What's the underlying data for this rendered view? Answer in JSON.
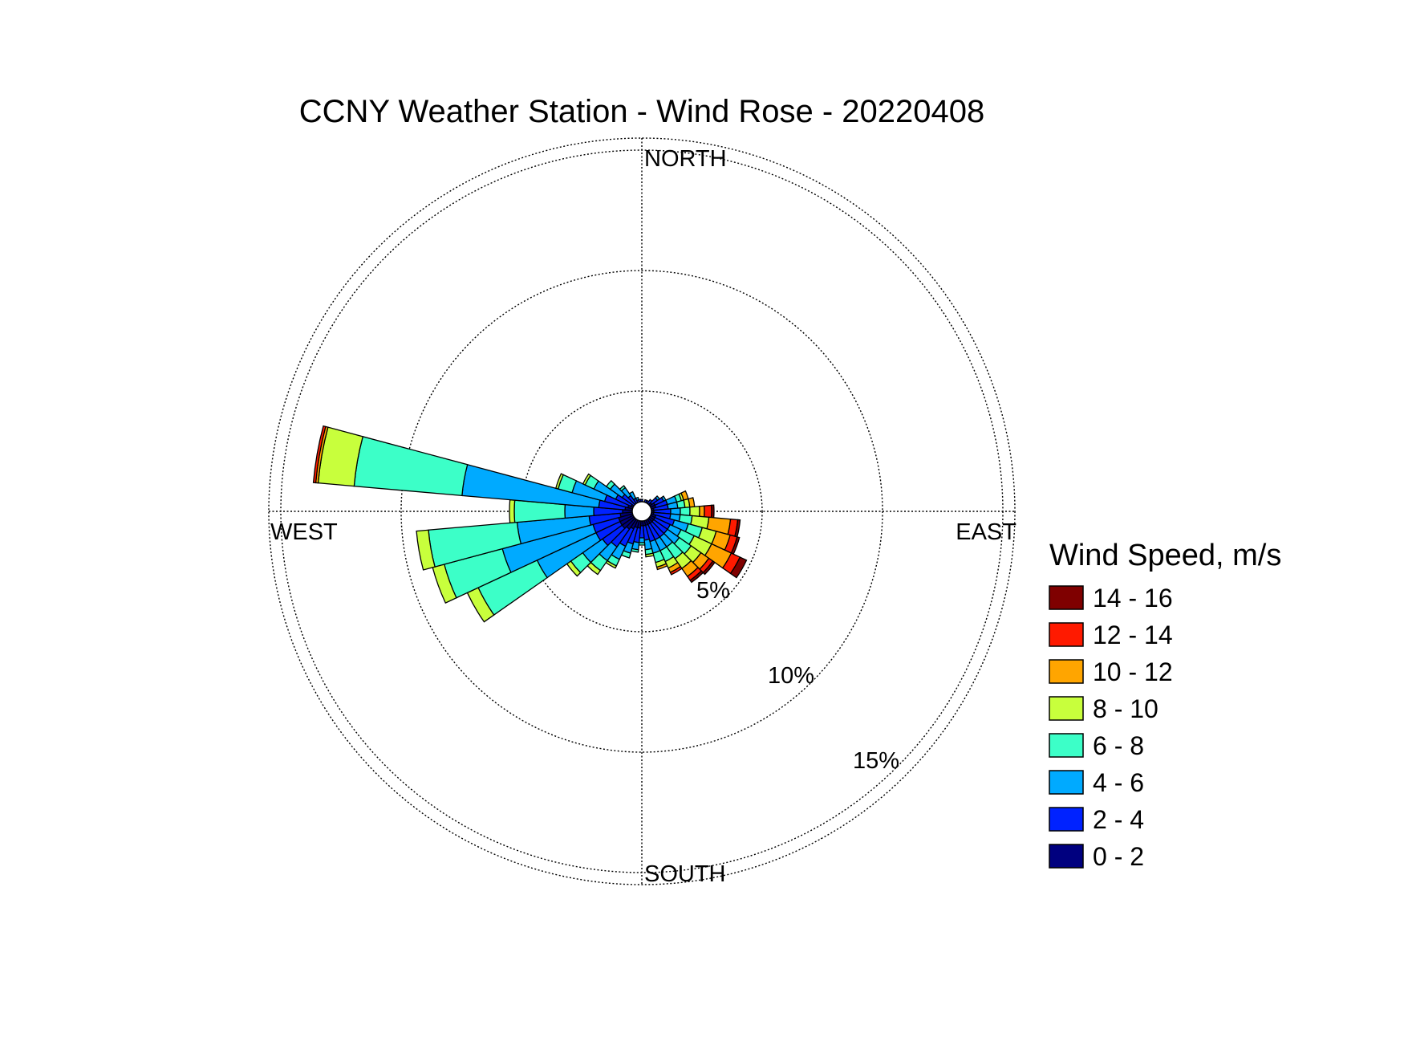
{
  "chart_data": {
    "type": "windrose",
    "title": "CCNY Weather Station - Wind Rose - 20220408",
    "direction_labels": [
      "NORTH",
      "EAST",
      "SOUTH",
      "WEST"
    ],
    "ring_labels": [
      "5%",
      "10%",
      "15%"
    ],
    "rings_percent": [
      5,
      10,
      15
    ],
    "rmax_percent": 15.5,
    "grid": true,
    "legend_position": "right",
    "legend_title": "Wind Speed, m/s",
    "speed_bins": [
      {
        "label": "0 - 2",
        "color": "#00007f"
      },
      {
        "label": "2 - 4",
        "color": "#0022ff"
      },
      {
        "label": "4 - 6",
        "color": "#00aaff"
      },
      {
        "label": "6 - 8",
        "color": "#3cffc8"
      },
      {
        "label": "8 - 10",
        "color": "#c8ff3c"
      },
      {
        "label": "10 - 12",
        "color": "#ffa500"
      },
      {
        "label": "12 - 14",
        "color": "#ff1a00"
      },
      {
        "label": "14 - 16",
        "color": "#7f0000"
      }
    ],
    "sector_width_deg": 10,
    "sectors": [
      {
        "direction_deg": 0,
        "cumulative_percent": [
          0.3,
          0.5
        ]
      },
      {
        "direction_deg": 10,
        "cumulative_percent": [
          0.3,
          0.4
        ]
      },
      {
        "direction_deg": 20,
        "cumulative_percent": [
          0.3,
          0.5
        ]
      },
      {
        "direction_deg": 30,
        "cumulative_percent": [
          0.3,
          0.5
        ]
      },
      {
        "direction_deg": 40,
        "cumulative_percent": [
          0.4,
          0.6
        ]
      },
      {
        "direction_deg": 50,
        "cumulative_percent": [
          0.5,
          0.8,
          0.9
        ]
      },
      {
        "direction_deg": 60,
        "cumulative_percent": [
          0.6,
          1.0,
          1.1
        ]
      },
      {
        "direction_deg": 70,
        "cumulative_percent": [
          0.6,
          1.1,
          1.5,
          1.7,
          1.8,
          2.0
        ]
      },
      {
        "direction_deg": 80,
        "cumulative_percent": [
          0.5,
          1.1,
          1.5,
          1.8,
          2.0,
          2.2
        ]
      },
      {
        "direction_deg": 90,
        "cumulative_percent": [
          0.5,
          1.2,
          1.6,
          2.0,
          2.4,
          2.6,
          2.9,
          3.0
        ]
      },
      {
        "direction_deg": 100,
        "cumulative_percent": [
          0.5,
          1.2,
          1.6,
          2.1,
          2.8,
          3.7,
          4.0,
          4.1
        ]
      },
      {
        "direction_deg": 110,
        "cumulative_percent": [
          0.6,
          1.4,
          2.0,
          2.6,
          3.2,
          3.8,
          4.1,
          4.2
        ]
      },
      {
        "direction_deg": 120,
        "cumulative_percent": [
          0.6,
          1.3,
          1.8,
          2.4,
          3.2,
          4.1,
          4.5,
          4.8
        ]
      },
      {
        "direction_deg": 130,
        "cumulative_percent": [
          0.6,
          1.3,
          1.9,
          2.5,
          3.0,
          3.4,
          3.6,
          3.7
        ]
      },
      {
        "direction_deg": 140,
        "cumulative_percent": [
          0.6,
          1.3,
          1.8,
          2.4,
          2.9,
          3.3,
          3.5,
          3.6
        ]
      },
      {
        "direction_deg": 150,
        "cumulative_percent": [
          0.6,
          1.3,
          1.8,
          2.3,
          2.6,
          2.8,
          2.9
        ]
      },
      {
        "direction_deg": 160,
        "cumulative_percent": [
          0.6,
          1.3,
          1.8,
          2.2,
          2.4,
          2.5
        ]
      },
      {
        "direction_deg": 170,
        "cumulative_percent": [
          0.6,
          1.2,
          1.6,
          1.8,
          1.9
        ]
      },
      {
        "direction_deg": 180,
        "cumulative_percent": [
          0.6,
          1.1,
          1.3,
          1.4
        ]
      },
      {
        "direction_deg": 190,
        "cumulative_percent": [
          0.7,
          1.3,
          1.6,
          1.7
        ]
      },
      {
        "direction_deg": 200,
        "cumulative_percent": [
          0.7,
          1.4,
          1.8,
          2.0
        ]
      },
      {
        "direction_deg": 210,
        "cumulative_percent": [
          0.8,
          1.6,
          2.2,
          2.5,
          2.6
        ]
      },
      {
        "direction_deg": 220,
        "cumulative_percent": [
          0.9,
          1.8,
          2.5,
          3.0,
          3.2
        ]
      },
      {
        "direction_deg": 230,
        "cumulative_percent": [
          1.0,
          2.0,
          3.0,
          3.6,
          3.8
        ]
      },
      {
        "direction_deg": 240,
        "cumulative_percent": [
          1.0,
          2.1,
          4.8,
          7.5,
          8.0
        ]
      },
      {
        "direction_deg": 250,
        "cumulative_percent": [
          1.0,
          2.1,
          6.0,
          8.5,
          9.0
        ]
      },
      {
        "direction_deg": 260,
        "cumulative_percent": [
          0.9,
          2.2,
          5.2,
          8.9,
          9.4
        ]
      },
      {
        "direction_deg": 270,
        "cumulative_percent": [
          0.8,
          2.0,
          3.2,
          5.3,
          5.5
        ]
      },
      {
        "direction_deg": 280,
        "cumulative_percent": [
          0.7,
          1.8,
          7.5,
          12.0,
          13.5,
          13.6,
          13.7
        ]
      },
      {
        "direction_deg": 290,
        "cumulative_percent": [
          0.6,
          1.6,
          3.0,
          3.6,
          3.7
        ]
      },
      {
        "direction_deg": 300,
        "cumulative_percent": [
          0.5,
          1.2,
          2.2,
          2.6,
          2.7
        ]
      },
      {
        "direction_deg": 310,
        "cumulative_percent": [
          0.4,
          1.0,
          1.6,
          1.8
        ]
      },
      {
        "direction_deg": 320,
        "cumulative_percent": [
          0.4,
          0.8,
          1.2,
          1.3
        ]
      },
      {
        "direction_deg": 330,
        "cumulative_percent": [
          0.3,
          0.6,
          0.9
        ]
      },
      {
        "direction_deg": 340,
        "cumulative_percent": [
          0.3,
          0.5,
          0.6
        ]
      },
      {
        "direction_deg": 350,
        "cumulative_percent": [
          0.3,
          0.5
        ]
      }
    ]
  }
}
